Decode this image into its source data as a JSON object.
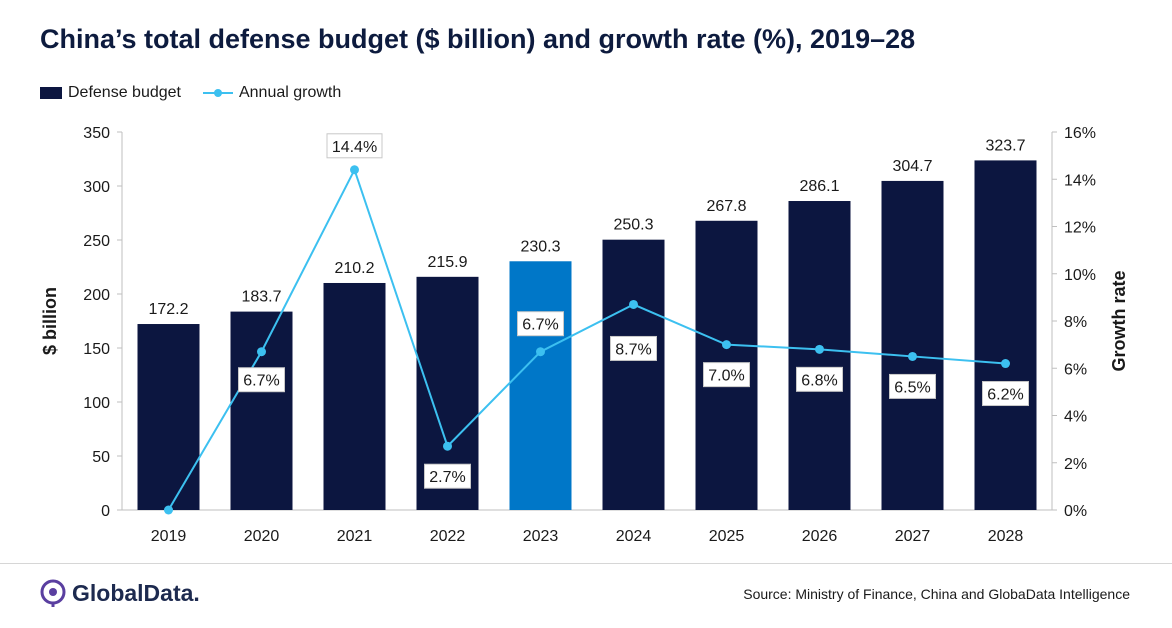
{
  "title": "China’s total defense budget ($ billion) and growth rate (%), 2019–28",
  "legend": {
    "bar_label": "Defense budget",
    "line_label": "Annual growth"
  },
  "colors": {
    "bar": "#0c1640",
    "bar_highlight": "#0077c8",
    "line": "#3cc0f0",
    "axis": "#bfbfbf"
  },
  "chart_data": {
    "type": "bar",
    "title": "China’s total defense budget ($ billion) and growth rate (%), 2019–28",
    "categories": [
      "2019",
      "2020",
      "2021",
      "2022",
      "2023",
      "2024",
      "2025",
      "2026",
      "2027",
      "2028"
    ],
    "series": [
      {
        "name": "Defense budget",
        "type": "bar",
        "axis": "left",
        "values": [
          172.2,
          183.7,
          210.2,
          215.9,
          230.3,
          250.3,
          267.8,
          286.1,
          304.7,
          323.7
        ],
        "labels": [
          "172.2",
          "183.7",
          "210.2",
          "215.9",
          "230.3",
          "250.3",
          "267.8",
          "286.1",
          "304.7",
          "323.7"
        ],
        "highlight_index": 4
      },
      {
        "name": "Annual growth",
        "type": "line",
        "axis": "right",
        "values": [
          0,
          6.7,
          14.4,
          2.7,
          6.7,
          8.7,
          7.0,
          6.8,
          6.5,
          6.2
        ],
        "labels": [
          "",
          "6.7%",
          "14.4%",
          "2.7%",
          "6.7%",
          "8.7%",
          "7.0%",
          "6.8%",
          "6.5%",
          "6.2%"
        ]
      }
    ],
    "ylabel": "$ billion",
    "ylim": [
      0,
      350
    ],
    "yticks": [
      "0",
      "50",
      "100",
      "150",
      "200",
      "250",
      "300",
      "350"
    ],
    "y2label": "Growth rate",
    "y2lim": [
      0,
      16
    ],
    "y2ticks": [
      "0%",
      "2%",
      "4%",
      "6%",
      "8%",
      "10%",
      "12%",
      "14%",
      "16%"
    ],
    "grid": false,
    "legend_position": "top-left"
  },
  "footer": {
    "logo_text": "GlobalData.",
    "source": "Source:  Ministry of Finance, China and GlobaData Intelligence"
  }
}
